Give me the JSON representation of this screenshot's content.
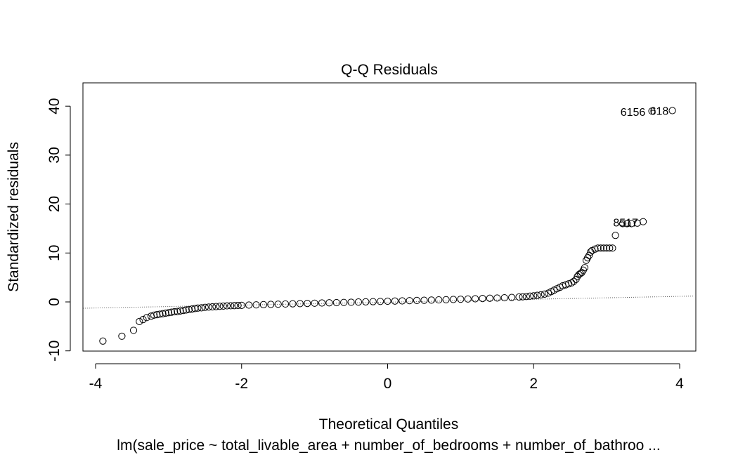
{
  "chart_data": {
    "type": "scatter",
    "title": "Q-Q Residuals",
    "xlabel": "Theoretical Quantiles",
    "ylabel": "Standardized residuals",
    "subtitle": "lm(sale_price ~ total_livable_area + number_of_bedrooms + number_of_bathroo ...",
    "xlim": [
      -4.2,
      4.2
    ],
    "ylim": [
      -10,
      45
    ],
    "x_ticks": [
      -4,
      -2,
      0,
      2,
      4
    ],
    "y_ticks": [
      -10,
      0,
      10,
      20,
      30,
      40
    ],
    "x_tick_labels": [
      "-4",
      "-2",
      "0",
      "2",
      "4"
    ],
    "y_tick_labels": [
      "-10",
      "0",
      "10",
      "20",
      "30",
      "40"
    ],
    "grid": false,
    "reference_line": {
      "style": "dotted",
      "from": [
        -4.2,
        -1.3
      ],
      "to": [
        4.2,
        1.2
      ]
    },
    "series": [
      {
        "marker": "open-circle",
        "x": [
          -3.9,
          -3.64,
          -3.48,
          -3.4,
          -3.35,
          -3.3,
          -3.24,
          -3.2,
          -3.16,
          -3.12,
          -3.08,
          -3.04,
          -3.0,
          -2.96,
          -2.92,
          -2.88,
          -2.84,
          -2.8,
          -2.76,
          -2.72,
          -2.68,
          -2.64,
          -2.6,
          -2.55,
          -2.5,
          -2.45,
          -2.4,
          -2.35,
          -2.3,
          -2.25,
          -2.2,
          -2.15,
          -2.1,
          -2.05,
          -2.0,
          -1.9,
          -1.8,
          -1.7,
          -1.6,
          -1.5,
          -1.4,
          -1.3,
          -1.2,
          -1.1,
          -1.0,
          -0.9,
          -0.8,
          -0.7,
          -0.6,
          -0.5,
          -0.4,
          -0.3,
          -0.2,
          -0.1,
          0.0,
          0.1,
          0.2,
          0.3,
          0.4,
          0.5,
          0.6,
          0.7,
          0.8,
          0.9,
          1.0,
          1.1,
          1.2,
          1.3,
          1.4,
          1.5,
          1.6,
          1.7,
          1.8,
          1.85,
          1.9,
          1.95,
          2.0,
          2.05,
          2.1,
          2.15,
          2.2,
          2.24,
          2.28,
          2.32,
          2.36,
          2.4,
          2.44,
          2.48,
          2.52,
          2.55,
          2.58,
          2.6,
          2.62,
          2.64,
          2.66,
          2.68,
          2.7,
          2.72,
          2.74,
          2.76,
          2.78,
          2.8,
          2.84,
          2.88,
          2.92,
          2.96,
          3.0,
          3.04,
          3.08,
          3.12,
          3.22,
          3.28,
          3.34,
          3.42,
          3.5,
          3.62,
          3.9
        ],
        "y": [
          -8.0,
          -7.0,
          -5.8,
          -4.0,
          -3.6,
          -3.2,
          -2.9,
          -2.7,
          -2.6,
          -2.5,
          -2.4,
          -2.3,
          -2.2,
          -2.1,
          -2.0,
          -1.95,
          -1.85,
          -1.75,
          -1.65,
          -1.55,
          -1.45,
          -1.35,
          -1.25,
          -1.2,
          -1.1,
          -1.05,
          -1.0,
          -0.95,
          -0.9,
          -0.85,
          -0.8,
          -0.78,
          -0.75,
          -0.72,
          -0.7,
          -0.65,
          -0.6,
          -0.55,
          -0.5,
          -0.46,
          -0.42,
          -0.38,
          -0.34,
          -0.3,
          -0.26,
          -0.22,
          -0.18,
          -0.14,
          -0.1,
          -0.06,
          -0.02,
          0.02,
          0.06,
          0.1,
          0.14,
          0.18,
          0.22,
          0.26,
          0.3,
          0.34,
          0.38,
          0.42,
          0.46,
          0.5,
          0.55,
          0.6,
          0.65,
          0.7,
          0.75,
          0.8,
          0.85,
          0.92,
          1.0,
          1.05,
          1.1,
          1.18,
          1.25,
          1.35,
          1.45,
          1.6,
          1.8,
          2.1,
          2.4,
          2.7,
          3.0,
          3.3,
          3.5,
          3.7,
          3.9,
          4.2,
          4.6,
          5.2,
          5.6,
          5.8,
          6.0,
          6.5,
          7.0,
          8.5,
          9.0,
          9.5,
          10.2,
          10.5,
          10.8,
          11.0,
          11.0,
          11.0,
          11.0,
          11.0,
          11.0,
          13.6,
          16.0,
          16.0,
          16.0,
          16.1,
          16.4,
          39.0,
          39.1
        ]
      }
    ],
    "annotations": [
      {
        "text": "6156",
        "x": 3.36,
        "y": 38.9
      },
      {
        "text": "618",
        "x": 3.72,
        "y": 39.1
      },
      {
        "text": "8517",
        "x": 3.26,
        "y": 16.3
      }
    ]
  }
}
